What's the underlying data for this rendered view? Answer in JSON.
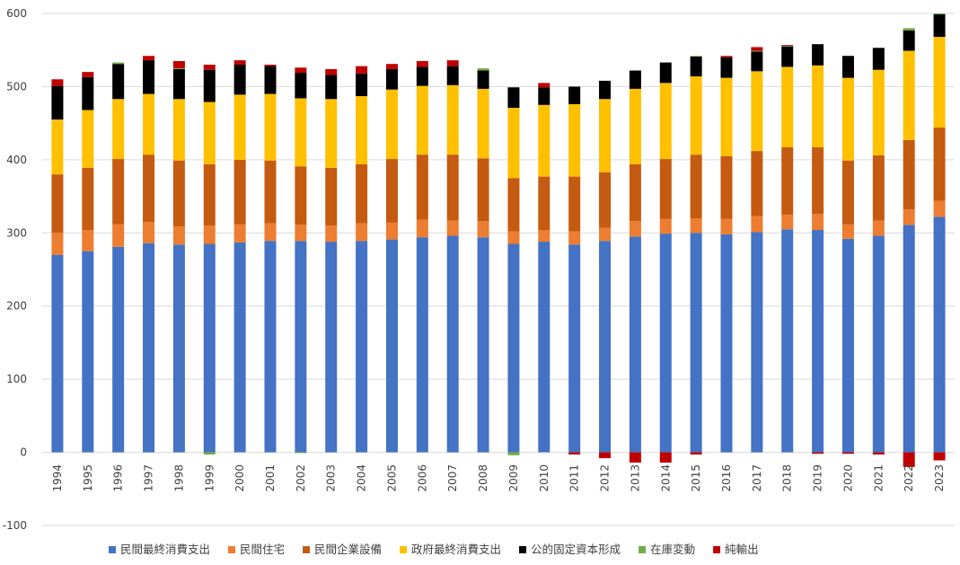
{
  "chart_data": {
    "type": "bar",
    "stacked": true,
    "title": "",
    "xlabel": "",
    "ylabel": "",
    "ylim": [
      -100,
      600
    ],
    "yticks": [
      -100,
      0,
      100,
      200,
      300,
      400,
      500,
      600
    ],
    "grid": true,
    "legend_position": "bottom",
    "categories": [
      "1994",
      "1995",
      "1996",
      "1997",
      "1998",
      "1999",
      "2000",
      "2001",
      "2002",
      "2003",
      "2004",
      "2005",
      "2006",
      "2007",
      "2008",
      "2009",
      "2010",
      "2011",
      "2012",
      "2013",
      "2014",
      "2015",
      "2016",
      "2017",
      "2018",
      "2019",
      "2020",
      "2021",
      "2022",
      "2023"
    ],
    "series": [
      {
        "name": "民間最終消費支出",
        "color": "#4472C4",
        "values": [
          270,
          275,
          281,
          286,
          284,
          285,
          287,
          289,
          289,
          288,
          289,
          291,
          294,
          296,
          294,
          285,
          288,
          284,
          289,
          295,
          299,
          300,
          298,
          301,
          305,
          304,
          292,
          296,
          311,
          322
        ]
      },
      {
        "name": "民間住宅",
        "color": "#ED7D31",
        "values": [
          30,
          29,
          31,
          29,
          25,
          25,
          25,
          24,
          22,
          22,
          24,
          23,
          24,
          21,
          22,
          17,
          16,
          18,
          18,
          21,
          20,
          20,
          21,
          22,
          20,
          22,
          20,
          21,
          21,
          22
        ]
      },
      {
        "name": "民間企業設備",
        "color": "#C55A11",
        "values": [
          80,
          85,
          89,
          92,
          90,
          84,
          88,
          86,
          80,
          79,
          81,
          87,
          89,
          90,
          86,
          73,
          73,
          75,
          76,
          78,
          82,
          87,
          86,
          89,
          92,
          91,
          87,
          89,
          95,
          100
        ]
      },
      {
        "name": "政府最終消費支出",
        "color": "#FFC000",
        "values": [
          75,
          79,
          82,
          83,
          84,
          85,
          89,
          91,
          93,
          94,
          93,
          95,
          94,
          95,
          95,
          96,
          98,
          99,
          100,
          103,
          104,
          107,
          107,
          109,
          110,
          112,
          113,
          117,
          122,
          124
        ]
      },
      {
        "name": "公的固定資本形成",
        "color": "#000000",
        "values": [
          46,
          45,
          48,
          46,
          41,
          44,
          41,
          38,
          35,
          33,
          31,
          28,
          26,
          26,
          25,
          28,
          24,
          24,
          25,
          25,
          28,
          27,
          28,
          27,
          28,
          29,
          30,
          30,
          28,
          31
        ]
      },
      {
        "name": "在庫変動",
        "color": "#70AD47",
        "values": [
          0,
          0,
          2,
          0,
          1,
          -3,
          0,
          0,
          -1,
          0,
          0,
          0,
          0,
          0,
          3,
          -4,
          0,
          0,
          0,
          0,
          0,
          1,
          0,
          1,
          1,
          0,
          0,
          0,
          3,
          1
        ]
      },
      {
        "name": "純輸出",
        "color": "#C00000",
        "values": [
          9,
          7,
          0,
          6,
          10,
          7,
          6,
          2,
          7,
          8,
          10,
          7,
          8,
          8,
          0,
          0,
          6,
          -3,
          -8,
          -14,
          -14,
          -3,
          2,
          5,
          1,
          -2,
          -2,
          -3,
          -20,
          -11
        ]
      }
    ]
  }
}
